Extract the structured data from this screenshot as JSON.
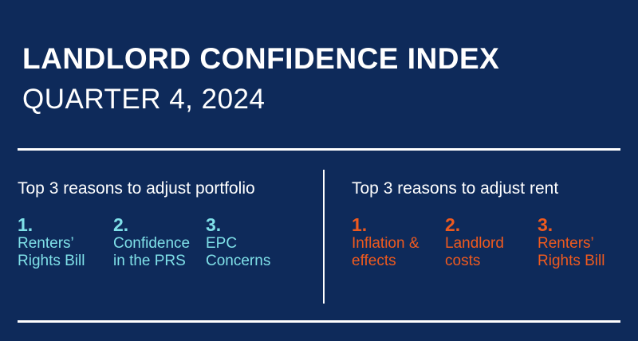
{
  "header": {
    "title": "LANDLORD CONFIDENCE INDEX",
    "subtitle": "QUARTER 4, 2024"
  },
  "portfolio": {
    "heading": "Top 3 reasons to adjust portfolio",
    "color": "#7fe0e8",
    "reasons": [
      {
        "num": "1.",
        "text": "Renters’\nRights Bill"
      },
      {
        "num": "2.",
        "text": "Confidence\nin the PRS"
      },
      {
        "num": "3.",
        "text": "EPC\nConcerns"
      }
    ]
  },
  "rent": {
    "heading": "Top 3 reasons to adjust rent",
    "color": "#ef5a1e",
    "reasons": [
      {
        "num": "1.",
        "text": "Inflation &\neffects"
      },
      {
        "num": "2.",
        "text": "Landlord\ncosts"
      },
      {
        "num": "3.",
        "text": "Renters’\nRights Bill"
      }
    ]
  },
  "colors": {
    "background": "#0e2a5a",
    "text": "#ffffff"
  }
}
